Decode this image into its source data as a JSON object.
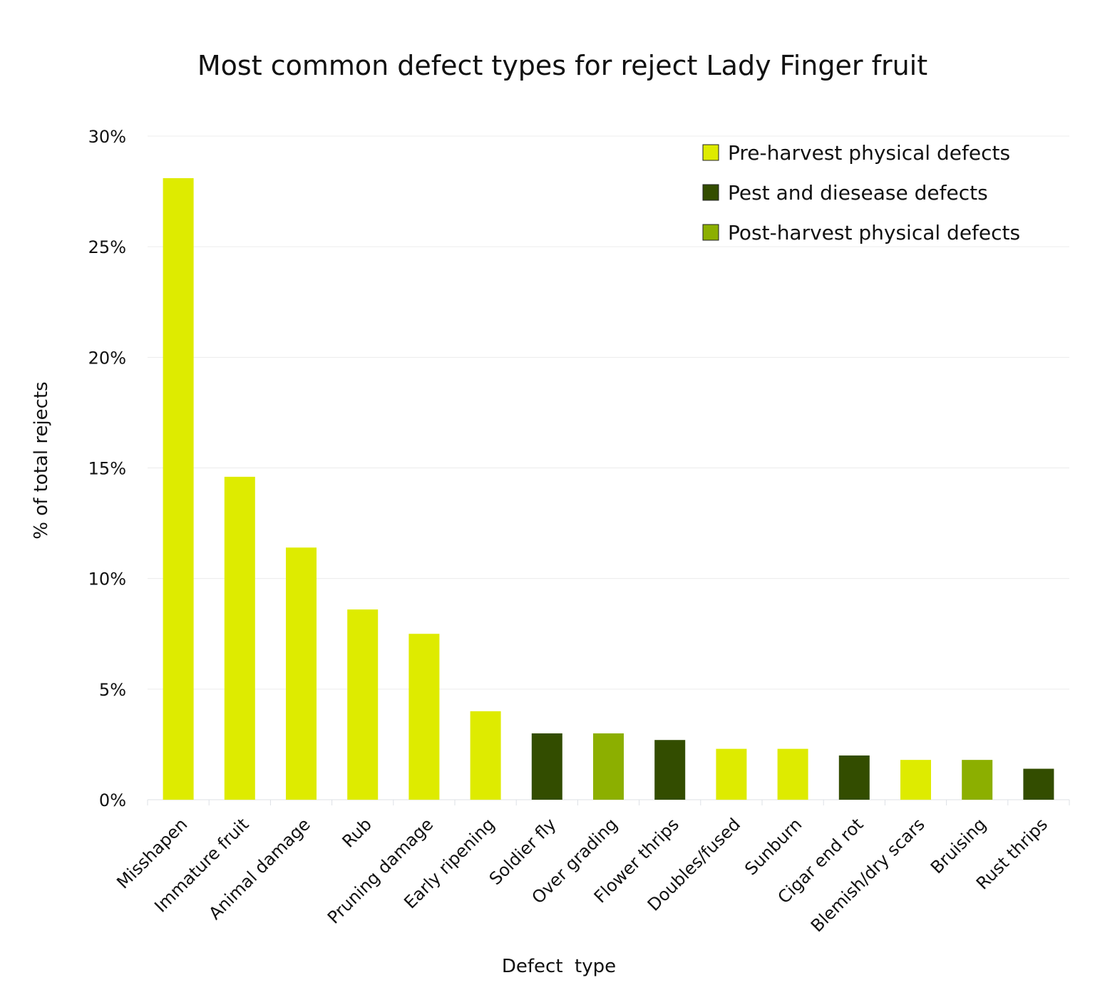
{
  "chart_data": {
    "type": "bar",
    "title": "Most common defect types for reject Lady Finger fruit",
    "xlabel": "Defect  type",
    "ylabel": "% of total rejects",
    "ylim": [
      0,
      30
    ],
    "yticks": [
      "0%",
      "5%",
      "10%",
      "15%",
      "20%",
      "25%",
      "30%"
    ],
    "ytick_values": [
      0,
      5,
      10,
      15,
      20,
      25,
      30
    ],
    "grid": true,
    "legend_placement": "top-right",
    "categories": [
      "Misshapen",
      "Immature fruit",
      "Animal damage",
      "Rub",
      "Pruning damage",
      "Early ripening",
      "Soldier fly",
      "Over grading",
      "Flower thrips",
      "Doubles/fused",
      "Sunburn",
      "Cigar end rot",
      "Blemish/dry scars",
      "Bruising",
      "Rust thrips"
    ],
    "values": [
      28.1,
      14.6,
      11.4,
      8.6,
      7.5,
      4.0,
      3.0,
      3.0,
      2.7,
      2.3,
      2.3,
      2.0,
      1.8,
      1.8,
      1.4
    ],
    "groups": [
      "pre",
      "pre",
      "pre",
      "pre",
      "pre",
      "pre",
      "pest",
      "post",
      "pest",
      "pre",
      "pre",
      "pest",
      "pre",
      "post",
      "pest"
    ],
    "legend": [
      {
        "key": "pre",
        "name": "Pre-harvest physical defects",
        "color": "#deeb00"
      },
      {
        "key": "pest",
        "name": "Pest and diesease defects",
        "color": "#334d00"
      },
      {
        "key": "post",
        "name": "Post-harvest physical defects",
        "color": "#8caf00"
      }
    ]
  }
}
